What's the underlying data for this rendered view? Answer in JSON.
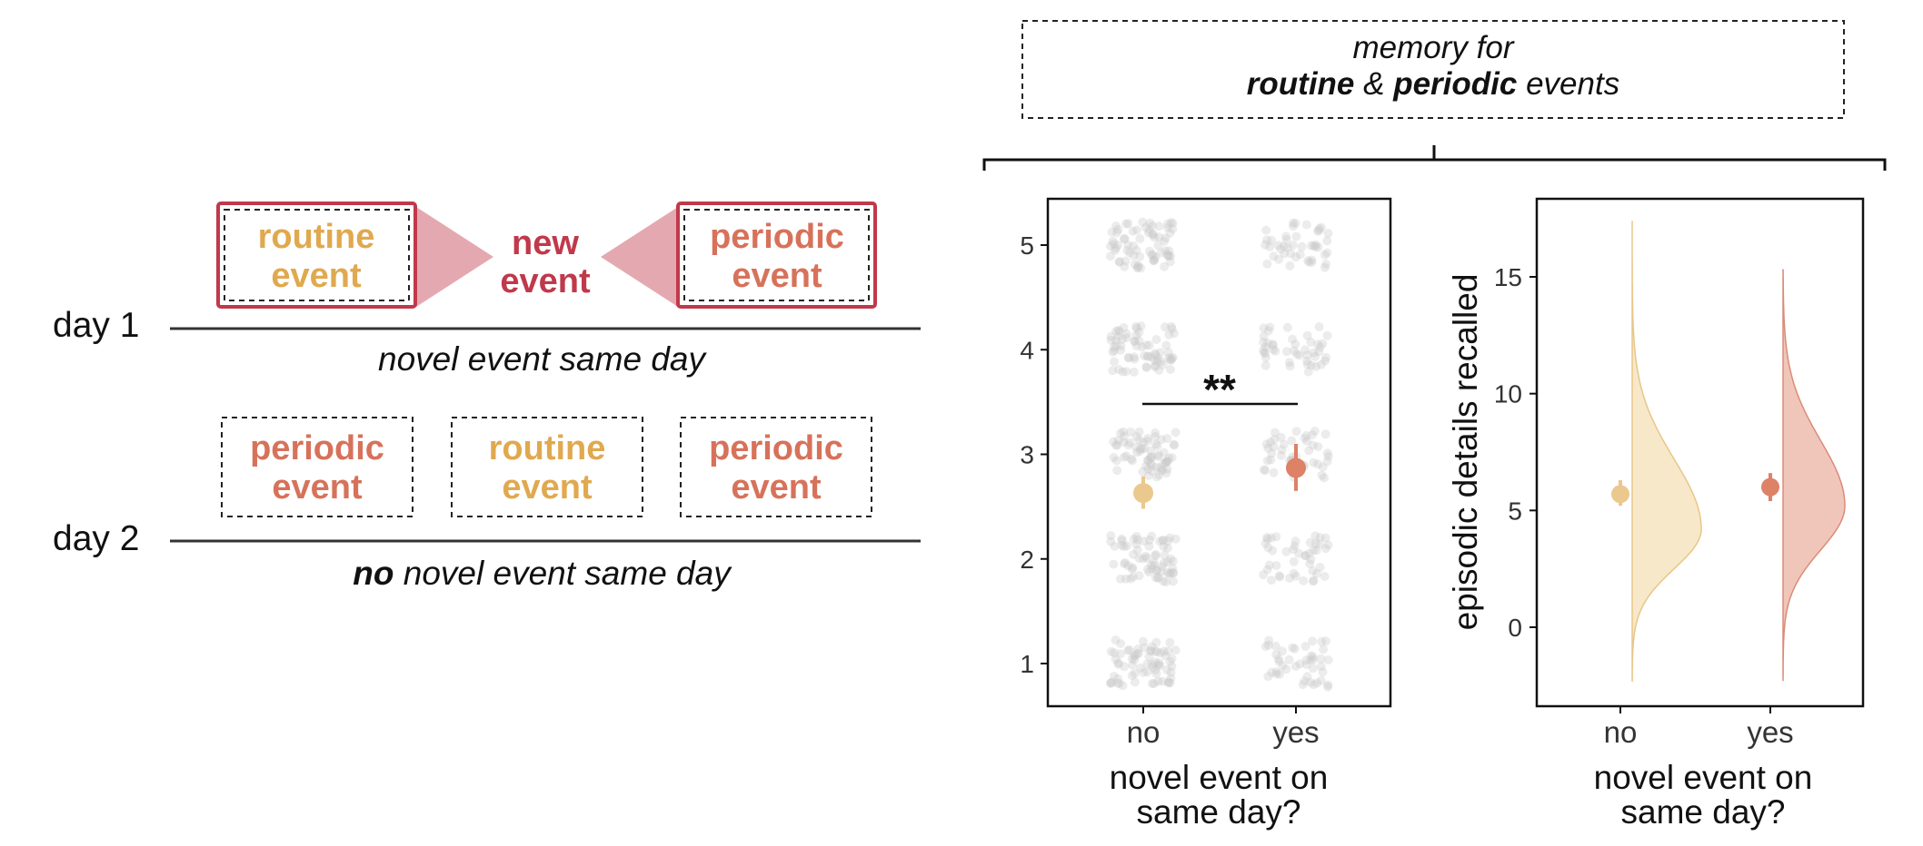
{
  "colors": {
    "routine": "#E0A94F",
    "periodic": "#D7725A",
    "new": "#C0394B",
    "arrow": "#E4A9B0",
    "dots": "#C8C8C8",
    "routine_fill": "#F6E5C3",
    "periodic_fill": "#F0C0B3",
    "routine_point": "#EBC88E",
    "periodic_point": "#DD8167"
  },
  "left": {
    "day1": {
      "label": "day 1",
      "box_left": [
        "routine",
        "event"
      ],
      "center": [
        "new",
        "event"
      ],
      "box_right": [
        "periodic",
        "event"
      ],
      "caption": "novel event same day"
    },
    "day2": {
      "label": "day 2",
      "box1": [
        "periodic",
        "event"
      ],
      "box2": [
        "routine",
        "event"
      ],
      "box3": [
        "periodic",
        "event"
      ],
      "caption_bold": "no",
      "caption_rest": " novel event same day"
    }
  },
  "header": {
    "line1": "memory for",
    "line2_b1": "routine",
    "line2_mid": " & ",
    "line2_b2": "periodic",
    "line2_rest": " events"
  },
  "significance": "**",
  "chart_data": [
    {
      "type": "scatter",
      "xlabel": "novel event on same day?",
      "categories": [
        "no",
        "yes"
      ],
      "yticks": [
        1,
        2,
        3,
        4,
        5
      ],
      "jitter_points": "jittered raw ratings at levels 1, 2, 3, 4, 5 for each group (more points in 'no')",
      "summary": [
        {
          "category": "no",
          "mean": 2.63,
          "ci": [
            2.48,
            2.79
          ]
        },
        {
          "category": "yes",
          "mean": 2.87,
          "ci": [
            2.65,
            3.1
          ]
        }
      ],
      "annotation": "**"
    },
    {
      "type": "area",
      "ylabel": "episodic details recalled",
      "xlabel": "novel event on same day?",
      "categories": [
        "no",
        "yes"
      ],
      "yticks": [
        0,
        5,
        10,
        15
      ],
      "summary": [
        {
          "category": "no",
          "mean": 5.7,
          "ci": [
            5.2,
            6.3
          ]
        },
        {
          "category": "yes",
          "mean": 6.0,
          "ci": [
            5.4,
            6.6
          ]
        }
      ],
      "density_range": {
        "no": [
          -2.3,
          17.4
        ],
        "yes": [
          -2.3,
          15.3
        ]
      }
    }
  ]
}
